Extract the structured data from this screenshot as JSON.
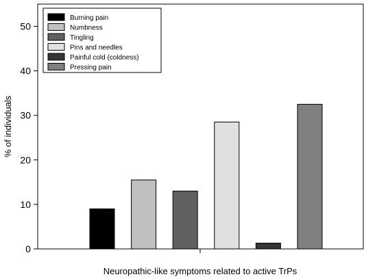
{
  "chart_data": {
    "type": "bar",
    "xlabel": "Neuropathic-like symptoms related to active TrPs",
    "ylabel": "% of individuals",
    "ylim": [
      0,
      55
    ],
    "yticks": [
      0,
      10,
      20,
      30,
      40,
      50
    ],
    "grid": false,
    "legend_position": "top-left",
    "categories": [
      "Burning pain",
      "Numbness",
      "Tingling",
      "Pins and needles",
      "Painful cold (coldness)",
      "Pressing pain"
    ],
    "values": [
      9,
      15.5,
      13,
      28.5,
      1.3,
      32.5
    ],
    "colors": [
      "#000000",
      "#c0c0c0",
      "#606060",
      "#e0e0e0",
      "#353535",
      "#808080"
    ]
  }
}
